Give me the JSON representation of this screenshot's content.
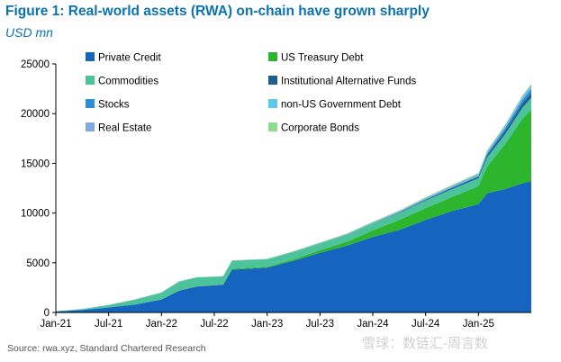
{
  "title": "Figure 1: Real-world assets (RWA) on-chain have grown sharply",
  "subtitle": "USD mn",
  "source": "Source: rwa.xyz, Standard Chartered Research",
  "watermark": "雪球：数链汇-周言数",
  "chart_data": {
    "type": "area",
    "stacked": true,
    "grid": false,
    "legend_position": "top (two columns)",
    "ylim": [
      0,
      25000
    ],
    "y_ticks": [
      "0",
      "5000",
      "10000",
      "15000",
      "20000",
      "25000"
    ],
    "x_tick_labels": [
      "Jan-21",
      "Jul-21",
      "Jan-22",
      "Jul-22",
      "Jan-23",
      "Jul-23",
      "Jan-24",
      "Jul-24",
      "Jan-25"
    ],
    "x_tick_dates": [
      "2021-01",
      "2021-07",
      "2022-01",
      "2022-07",
      "2023-01",
      "2023-07",
      "2024-01",
      "2024-07",
      "2025-01"
    ],
    "x_range": [
      "2021-01",
      "2025-07"
    ],
    "x": [
      "2021-01",
      "2021-04",
      "2021-07",
      "2021-10",
      "2022-01",
      "2022-03",
      "2022-05",
      "2022-08",
      "2022-09",
      "2023-01",
      "2023-04",
      "2023-07",
      "2023-10",
      "2024-01",
      "2024-04",
      "2024-07",
      "2024-10",
      "2025-01",
      "2025-02",
      "2025-04",
      "2025-06",
      "2025-07"
    ],
    "series": [
      {
        "name": "Private Credit",
        "color": "#1565c0",
        "values": [
          100,
          250,
          500,
          800,
          1300,
          2200,
          2600,
          2800,
          4300,
          4500,
          5200,
          6000,
          6700,
          7600,
          8300,
          9300,
          10200,
          10900,
          12000,
          12400,
          13000,
          13200
        ]
      },
      {
        "name": "US Treasury Debt",
        "color": "#2db52d",
        "values": [
          0,
          0,
          0,
          0,
          0,
          10,
          20,
          30,
          100,
          100,
          150,
          250,
          400,
          650,
          1000,
          1200,
          1400,
          1800,
          2700,
          4500,
          6500,
          7200
        ]
      },
      {
        "name": "Commodities",
        "color": "#4cc39a",
        "values": [
          30,
          100,
          250,
          500,
          700,
          900,
          900,
          800,
          800,
          750,
          750,
          700,
          700,
          700,
          700,
          750,
          800,
          800,
          900,
          1000,
          1100,
          1200
        ]
      },
      {
        "name": "Institutional Alternative Funds",
        "color": "#1f5f8f",
        "values": [
          0,
          0,
          0,
          0,
          0,
          0,
          0,
          0,
          0,
          0,
          0,
          0,
          0,
          0,
          50,
          80,
          120,
          150,
          250,
          350,
          450,
          500
        ]
      },
      {
        "name": "Stocks",
        "color": "#2a8fd6",
        "values": [
          0,
          0,
          0,
          0,
          0,
          0,
          0,
          0,
          0,
          0,
          0,
          0,
          20,
          30,
          40,
          60,
          80,
          100,
          150,
          250,
          350,
          400
        ]
      },
      {
        "name": "non-US Government Debt",
        "color": "#5ec8e8",
        "values": [
          0,
          0,
          0,
          0,
          0,
          0,
          0,
          0,
          0,
          0,
          0,
          0,
          0,
          10,
          20,
          30,
          40,
          60,
          80,
          100,
          130,
          150
        ]
      },
      {
        "name": "Real Estate",
        "color": "#7fa8e0",
        "values": [
          0,
          5,
          10,
          10,
          20,
          20,
          20,
          20,
          30,
          30,
          40,
          50,
          60,
          70,
          80,
          90,
          100,
          120,
          130,
          150,
          170,
          200
        ]
      },
      {
        "name": "Corporate Bonds",
        "color": "#8fdc8f",
        "values": [
          0,
          0,
          0,
          0,
          0,
          5,
          10,
          10,
          20,
          20,
          30,
          40,
          50,
          60,
          70,
          80,
          90,
          100,
          110,
          120,
          130,
          140
        ]
      }
    ]
  }
}
